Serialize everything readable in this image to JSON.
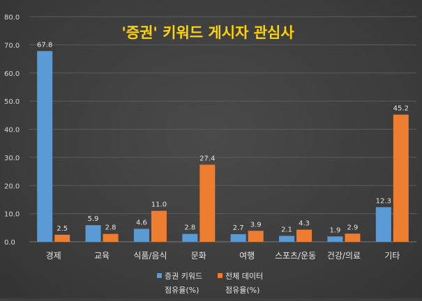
{
  "chart_data": {
    "type": "bar",
    "title": "'증권' 키워드 게시자 관심사",
    "categories": [
      "경제",
      "교육",
      "식품/음식",
      "문화",
      "여행",
      "스포츠/운동",
      "건강/의료",
      "기타"
    ],
    "series": [
      {
        "name": "증권 키워드 점유율(%)",
        "legend_line1": "증권 키워드",
        "legend_line2": "점유율(%)",
        "color": "#5b9bd5",
        "values": [
          67.8,
          5.9,
          4.6,
          2.8,
          2.7,
          2.1,
          1.9,
          12.3
        ]
      },
      {
        "name": "전체 데이터 점유율(%)",
        "legend_line1": "전체 데이터",
        "legend_line2": "점유율(%)",
        "color": "#ed7d31",
        "values": [
          2.5,
          2.8,
          11.0,
          27.4,
          3.9,
          4.3,
          2.9,
          45.2
        ]
      }
    ],
    "y_ticks": [
      "0.0",
      "10.0",
      "20.0",
      "30.0",
      "40.0",
      "50.0",
      "60.0",
      "70.0",
      "80.0"
    ],
    "ylim": [
      0,
      80
    ],
    "grid": true,
    "legend_position": "bottom"
  }
}
